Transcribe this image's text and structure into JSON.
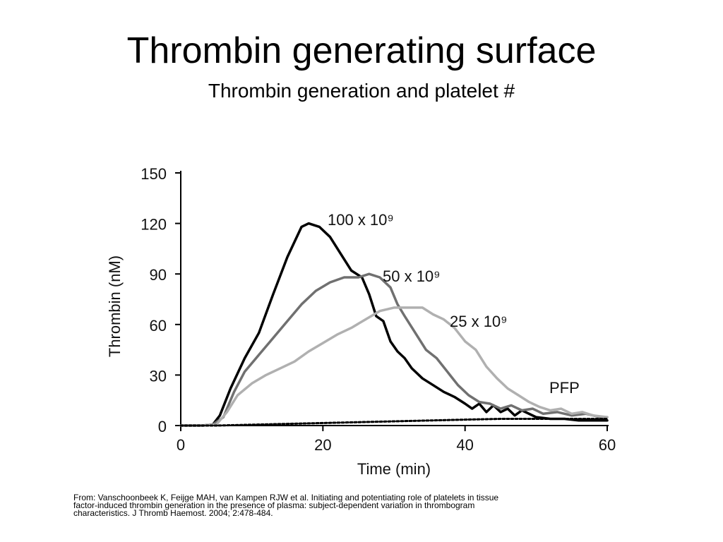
{
  "slide": {
    "title": "Thrombin generating surface",
    "subtitle": "Thrombin generation and platelet #",
    "citation": [
      "From: Vanschoonbeek K, Feijge MAH, van Kampen RJW et al. Initiating and potentiating role of platelets in tissue",
      "factor-induced thrombin generation in the presence of plasma: subject-dependent variation in thrombogram",
      "characteristics. J Thromb Haemost. 2004; 2:478-484."
    ]
  },
  "chart_data": {
    "type": "line",
    "title": "",
    "xlabel": "Time (min)",
    "ylabel": "Thrombin (nM)",
    "xlim": [
      0,
      60
    ],
    "ylim": [
      0,
      150
    ],
    "xticks": [
      0,
      20,
      40,
      60
    ],
    "yticks": [
      0,
      30,
      60,
      90,
      120,
      150
    ],
    "grid": false,
    "series": [
      {
        "name": "100 x 10⁹",
        "color": "#000000",
        "style": "solid",
        "points": [
          [
            0,
            0
          ],
          [
            3,
            0
          ],
          [
            4.5,
            0.5
          ],
          [
            5.5,
            6
          ],
          [
            7,
            22
          ],
          [
            9,
            40
          ],
          [
            11,
            55
          ],
          [
            13,
            78
          ],
          [
            15,
            100
          ],
          [
            17,
            118
          ],
          [
            18,
            120
          ],
          [
            19.5,
            118
          ],
          [
            21,
            112
          ],
          [
            22.5,
            102
          ],
          [
            24,
            92
          ],
          [
            25.5,
            88
          ],
          [
            26.5,
            78
          ],
          [
            27.5,
            65
          ],
          [
            28.5,
            62
          ],
          [
            29.5,
            50
          ],
          [
            30.5,
            44
          ],
          [
            31.5,
            40
          ],
          [
            32.5,
            34
          ],
          [
            34,
            28
          ],
          [
            35.5,
            24
          ],
          [
            37,
            20
          ],
          [
            38.5,
            17
          ],
          [
            40,
            13
          ],
          [
            41,
            10
          ],
          [
            42,
            13
          ],
          [
            43,
            8
          ],
          [
            44,
            12
          ],
          [
            45,
            8
          ],
          [
            46,
            10
          ],
          [
            47,
            6
          ],
          [
            48,
            9
          ],
          [
            50,
            5
          ],
          [
            52,
            4
          ],
          [
            54,
            4
          ],
          [
            56,
            3
          ],
          [
            58,
            3
          ],
          [
            60,
            3
          ]
        ]
      },
      {
        "name": "50 x 10⁹",
        "color": "#707070",
        "style": "solid",
        "points": [
          [
            0,
            0
          ],
          [
            3,
            0
          ],
          [
            4.5,
            0.5
          ],
          [
            6,
            5
          ],
          [
            7.5,
            20
          ],
          [
            9,
            32
          ],
          [
            11,
            42
          ],
          [
            13,
            52
          ],
          [
            15,
            62
          ],
          [
            17,
            72
          ],
          [
            19,
            80
          ],
          [
            21,
            85
          ],
          [
            23,
            88
          ],
          [
            25,
            88
          ],
          [
            26.5,
            90
          ],
          [
            28,
            88
          ],
          [
            29.5,
            82
          ],
          [
            30.5,
            72
          ],
          [
            31.5,
            65
          ],
          [
            33,
            55
          ],
          [
            34.5,
            45
          ],
          [
            36,
            40
          ],
          [
            37.5,
            32
          ],
          [
            39,
            24
          ],
          [
            40.5,
            18
          ],
          [
            42,
            14
          ],
          [
            43.5,
            13
          ],
          [
            45,
            10
          ],
          [
            46.5,
            12
          ],
          [
            48,
            9
          ],
          [
            49.5,
            10
          ],
          [
            51,
            7
          ],
          [
            53,
            8
          ],
          [
            55,
            6
          ],
          [
            57,
            7
          ],
          [
            59,
            5
          ],
          [
            60,
            5
          ]
        ]
      },
      {
        "name": "25 x 10⁹",
        "color": "#b0b0b0",
        "style": "solid",
        "points": [
          [
            0,
            0
          ],
          [
            3,
            0
          ],
          [
            5,
            0.5
          ],
          [
            6.5,
            8
          ],
          [
            8,
            18
          ],
          [
            10,
            25
          ],
          [
            12,
            30
          ],
          [
            14,
            34
          ],
          [
            16,
            38
          ],
          [
            18,
            44
          ],
          [
            20,
            49
          ],
          [
            22,
            54
          ],
          [
            24,
            58
          ],
          [
            26,
            63
          ],
          [
            28,
            68
          ],
          [
            30,
            70
          ],
          [
            32,
            70
          ],
          [
            34,
            70
          ],
          [
            35.5,
            66
          ],
          [
            37,
            63
          ],
          [
            38.5,
            58
          ],
          [
            40,
            50
          ],
          [
            41.5,
            45
          ],
          [
            43,
            35
          ],
          [
            44.5,
            28
          ],
          [
            46,
            22
          ],
          [
            47.5,
            18
          ],
          [
            49,
            14
          ],
          [
            50.5,
            11
          ],
          [
            52,
            9
          ],
          [
            53.5,
            10
          ],
          [
            55,
            7
          ],
          [
            56.5,
            8
          ],
          [
            58,
            6
          ],
          [
            60,
            5
          ]
        ]
      },
      {
        "name": "PFP",
        "color": "#000000",
        "style": "dashed",
        "points": [
          [
            0,
            0
          ],
          [
            5,
            0
          ],
          [
            10,
            0.5
          ],
          [
            15,
            1
          ],
          [
            20,
            1.5
          ],
          [
            25,
            2
          ],
          [
            30,
            2.5
          ],
          [
            35,
            3
          ],
          [
            40,
            3.5
          ],
          [
            45,
            4
          ],
          [
            50,
            4
          ],
          [
            55,
            4
          ],
          [
            60,
            4
          ]
        ]
      }
    ]
  }
}
